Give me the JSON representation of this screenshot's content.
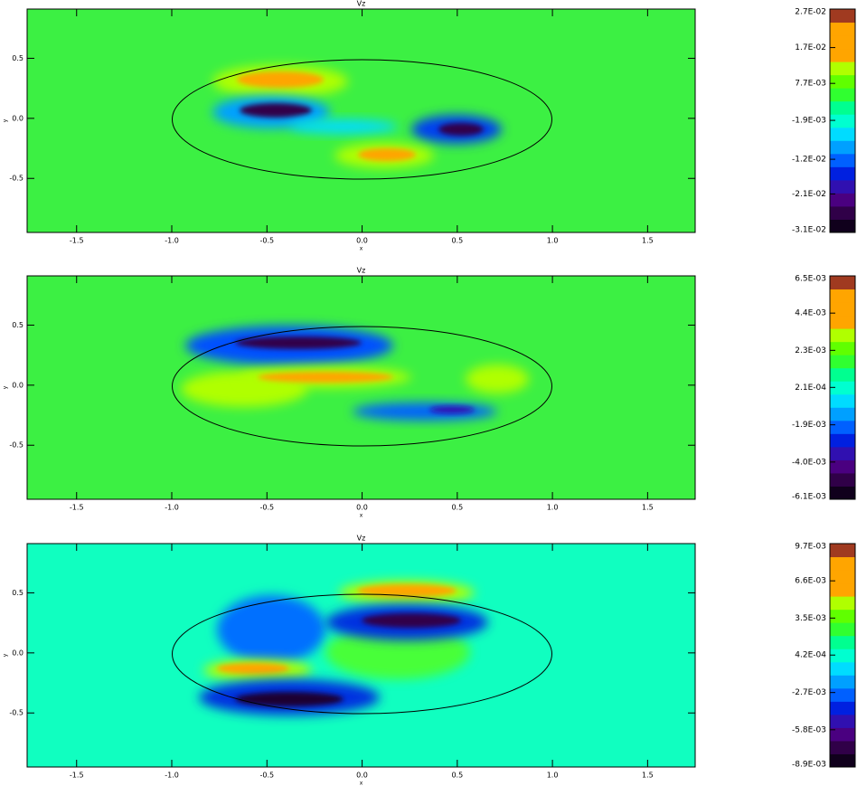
{
  "chart_data": [
    {
      "type": "contour",
      "title": "Vz",
      "xlabel": "x",
      "ylabel": "y",
      "background": "#3cf043",
      "xlim": [
        -1.76,
        1.75
      ],
      "ylim": [
        -0.95,
        0.91
      ],
      "xticks": [
        -1.5,
        {
          "value": -1,
          "label": "-1.0"
        },
        -0.5,
        {
          "value": 0,
          "label": "0.0"
        },
        0.5,
        {
          "value": 1,
          "label": "1.0"
        },
        1.5
      ],
      "yticks": [
        -0.5,
        {
          "value": 0,
          "label": "0.0"
        },
        0.5
      ],
      "colorbar": {
        "lim": [
          -0.031,
          0.027
        ],
        "colors": [
          "#10001c",
          "#300048",
          "#4a0080",
          "#3010b0",
          "#0020e0",
          "#0060ff",
          "#00a0ff",
          "#00dcff",
          "#00ffd0",
          "#00ff90",
          "#30ff30",
          "#60ff00",
          "#b0ff00",
          "#ffa500",
          "#ffa500",
          "#ffa500",
          "#a03a20"
        ],
        "ticks": [
          {
            "value": -0.031,
            "label": "-3.1E-02"
          },
          {
            "value": -0.021,
            "label": "-2.1E-02"
          },
          {
            "value": -0.012,
            "label": "-1.2E-02"
          },
          {
            "value": -0.0019,
            "label": "-1.9E-03"
          },
          {
            "value": 0.0077,
            "label": "7.7E-03"
          },
          {
            "value": 0.017,
            "label": "1.7E-02"
          },
          {
            "value": 0.027,
            "label": "2.7E-02"
          }
        ]
      }
    },
    {
      "type": "contour",
      "title": "Vz",
      "xlabel": "x",
      "ylabel": "y",
      "background": "#3cf043",
      "xlim": [
        -1.76,
        1.75
      ],
      "ylim": [
        -0.95,
        0.91
      ],
      "xticks": [
        -1.5,
        {
          "value": -1,
          "label": "-1.0"
        },
        -0.5,
        {
          "value": 0,
          "label": "0.0"
        },
        0.5,
        {
          "value": 1,
          "label": "1.0"
        },
        1.5
      ],
      "yticks": [
        -0.5,
        {
          "value": 0,
          "label": "0.0"
        },
        0.5
      ],
      "colorbar": {
        "lim": [
          -0.0061,
          0.0065
        ],
        "colors": [
          "#10001c",
          "#300048",
          "#4a0080",
          "#3010b0",
          "#0020e0",
          "#0060ff",
          "#00a0ff",
          "#00dcff",
          "#00ffd0",
          "#00ff90",
          "#30ff30",
          "#60ff00",
          "#b0ff00",
          "#ffa500",
          "#ffa500",
          "#ffa500",
          "#a03a20"
        ],
        "ticks": [
          {
            "value": -0.0061,
            "label": "-6.1E-03"
          },
          {
            "value": -0.004,
            "label": "-4.0E-03"
          },
          {
            "value": -0.0019,
            "label": "-1.9E-03"
          },
          {
            "value": 0.00021,
            "label": "2.1E-04"
          },
          {
            "value": 0.0023,
            "label": "2.3E-03"
          },
          {
            "value": 0.0044,
            "label": "4.4E-03"
          },
          {
            "value": 0.0065,
            "label": "6.5E-03"
          }
        ]
      }
    },
    {
      "type": "contour",
      "title": "Vz",
      "xlabel": "x",
      "ylabel": "y",
      "background": "#10ffc0",
      "xlim": [
        -1.76,
        1.75
      ],
      "ylim": [
        -0.95,
        0.91
      ],
      "xticks": [
        -1.5,
        {
          "value": -1,
          "label": "-1.0"
        },
        -0.5,
        {
          "value": 0,
          "label": "0.0"
        },
        0.5,
        {
          "value": 1,
          "label": "1.0"
        },
        1.5
      ],
      "yticks": [
        -0.5,
        {
          "value": 0,
          "label": "0.0"
        },
        0.5
      ],
      "colorbar": {
        "lim": [
          -0.0089,
          0.0097
        ],
        "colors": [
          "#10001c",
          "#300048",
          "#4a0080",
          "#3010b0",
          "#0020e0",
          "#0060ff",
          "#00a0ff",
          "#00dcff",
          "#00ffd0",
          "#00ff90",
          "#30ff30",
          "#60ff00",
          "#b0ff00",
          "#ffa500",
          "#ffa500",
          "#ffa500",
          "#a03a20"
        ],
        "ticks": [
          {
            "value": -0.0089,
            "label": "-8.9E-03"
          },
          {
            "value": -0.0058,
            "label": "-5.8E-03"
          },
          {
            "value": -0.0027,
            "label": "-2.7E-03"
          },
          {
            "value": 0.00042,
            "label": "4.2E-04"
          },
          {
            "value": 0.0035,
            "label": "3.5E-03"
          },
          {
            "value": 0.0066,
            "label": "6.6E-03"
          },
          {
            "value": 0.0097,
            "label": "9.7E-03"
          }
        ]
      }
    }
  ]
}
